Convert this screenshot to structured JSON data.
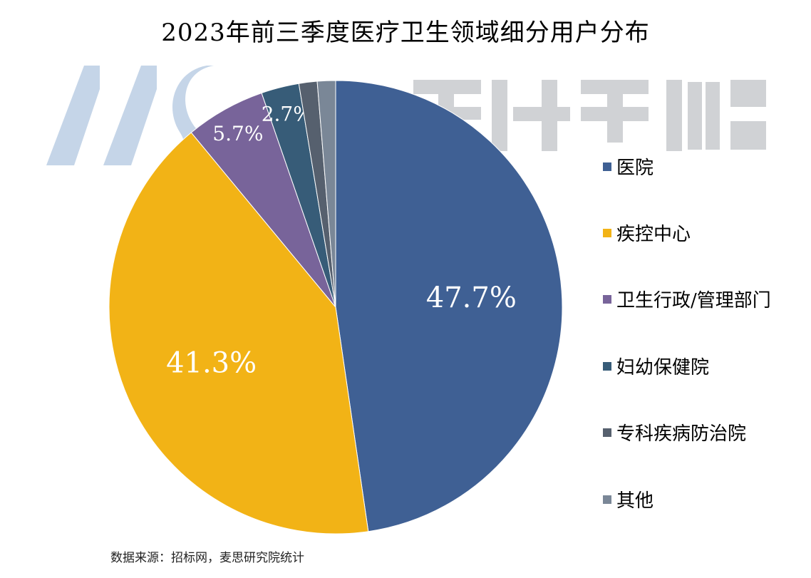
{
  "chart_data": {
    "type": "pie",
    "title": "2023年前三季度医疗卫生领域细分用户分布",
    "start_angle": "12 o'clock",
    "direction": "clockwise",
    "legend_position": "right",
    "slices": [
      {
        "name": "医院",
        "value": 47.7,
        "label": "47.7%",
        "color": "#3F6094"
      },
      {
        "name": "疾控中心",
        "value": 41.3,
        "label": "41.3%",
        "color": "#F2B316"
      },
      {
        "name": "卫生行政/管理部门",
        "value": 5.7,
        "label": "5.7%",
        "color": "#78649A"
      },
      {
        "name": "妇幼保健院",
        "value": 2.7,
        "label": "2.7%",
        "color": "#375C78"
      },
      {
        "name": "专科疾病防治院",
        "value": 1.3,
        "label": "",
        "color": "#56606E"
      },
      {
        "name": "其他",
        "value": 1.3,
        "label": "",
        "color": "#7A8797"
      }
    ]
  },
  "watermark": "麦思科学仪器",
  "source": "数据来源：招标网，麦思研究院统计"
}
